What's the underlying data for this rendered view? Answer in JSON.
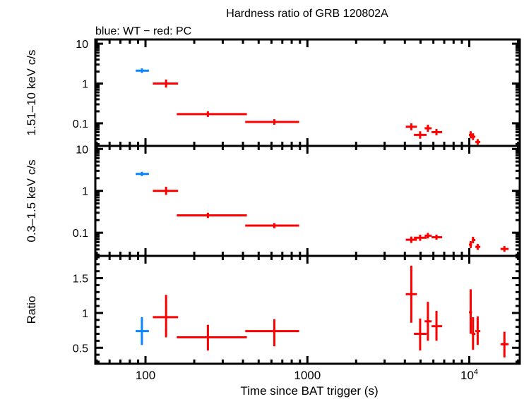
{
  "chart_data": {
    "type": "scatter",
    "title": "Hardness ratio of GRB 120802A",
    "subtitle": "blue: WT − red: PC",
    "xlabel": "Time since BAT trigger (s)",
    "xscale": "log",
    "xlim": [
      49,
      20500
    ],
    "x_ticks": [
      {
        "v": 100,
        "label": "100"
      },
      {
        "v": 1000,
        "label": "1000"
      },
      {
        "v": 10000,
        "label": "10",
        "sup": "4"
      }
    ],
    "colors": {
      "WT": "#0a84ff",
      "PC": "#ff0000",
      "axes": "#000000"
    },
    "panels": [
      {
        "ylabel": "1.51–10 keV c/s",
        "yscale": "log",
        "ylim": [
          0.027,
          12.8
        ],
        "y_ticks": [
          {
            "v": 10,
            "label": "10"
          },
          {
            "v": 1,
            "label": "1"
          },
          {
            "v": 0.1,
            "label": "0.1"
          }
        ],
        "points": [
          {
            "mode": "WT",
            "x": 95,
            "xlo": 87,
            "xhi": 105,
            "y": 2.1,
            "ylo": 1.85,
            "yhi": 2.4
          },
          {
            "mode": "PC",
            "x": 134,
            "xlo": 111,
            "xhi": 159,
            "y": 1.0,
            "ylo": 0.79,
            "yhi": 1.26
          },
          {
            "mode": "PC",
            "x": 243,
            "xlo": 156,
            "xhi": 423,
            "y": 0.17,
            "ylo": 0.145,
            "yhi": 0.2
          },
          {
            "mode": "PC",
            "x": 625,
            "xlo": 413,
            "xhi": 889,
            "y": 0.108,
            "ylo": 0.092,
            "yhi": 0.127
          },
          {
            "mode": "PC",
            "x": 4385,
            "xlo": 4050,
            "xhi": 4750,
            "y": 0.082,
            "ylo": 0.067,
            "yhi": 0.1
          },
          {
            "mode": "PC",
            "x": 4970,
            "xlo": 4550,
            "xhi": 5450,
            "y": 0.051,
            "ylo": 0.041,
            "yhi": 0.063
          },
          {
            "mode": "PC",
            "x": 5550,
            "xlo": 5300,
            "xhi": 5850,
            "y": 0.075,
            "ylo": 0.061,
            "yhi": 0.092
          },
          {
            "mode": "PC",
            "x": 6270,
            "xlo": 5850,
            "xhi": 6800,
            "y": 0.06,
            "ylo": 0.05,
            "yhi": 0.072
          },
          {
            "mode": "PC",
            "x": 10200,
            "xlo": 9950,
            "xhi": 10400,
            "y": 0.051,
            "ylo": 0.042,
            "yhi": 0.063
          },
          {
            "mode": "PC",
            "x": 10540,
            "xlo": 10350,
            "xhi": 10900,
            "y": 0.046,
            "ylo": 0.038,
            "yhi": 0.056
          },
          {
            "mode": "PC",
            "x": 11270,
            "xlo": 10900,
            "xhi": 11700,
            "y": 0.034,
            "ylo": 0.029,
            "yhi": 0.04
          }
        ]
      },
      {
        "ylabel": "0.3–1.5 keV c/s",
        "yscale": "log",
        "ylim": [
          0.028,
          11.8
        ],
        "y_ticks": [
          {
            "v": 10,
            "label": "10"
          },
          {
            "v": 1,
            "label": "1"
          },
          {
            "v": 0.1,
            "label": "0.1"
          }
        ],
        "points": [
          {
            "mode": "WT",
            "x": 95,
            "xlo": 87,
            "xhi": 105,
            "y": 2.53,
            "ylo": 2.25,
            "yhi": 2.85
          },
          {
            "mode": "PC",
            "x": 134,
            "xlo": 111,
            "xhi": 159,
            "y": 1.0,
            "ylo": 0.8,
            "yhi": 1.25
          },
          {
            "mode": "PC",
            "x": 243,
            "xlo": 156,
            "xhi": 423,
            "y": 0.26,
            "ylo": 0.225,
            "yhi": 0.3
          },
          {
            "mode": "PC",
            "x": 625,
            "xlo": 413,
            "xhi": 889,
            "y": 0.148,
            "ylo": 0.128,
            "yhi": 0.17
          },
          {
            "mode": "PC",
            "x": 4385,
            "xlo": 4050,
            "xhi": 4750,
            "y": 0.068,
            "ylo": 0.057,
            "yhi": 0.081
          },
          {
            "mode": "PC",
            "x": 4970,
            "xlo": 4550,
            "xhi": 5450,
            "y": 0.076,
            "ylo": 0.064,
            "yhi": 0.09
          },
          {
            "mode": "PC",
            "x": 5550,
            "xlo": 5300,
            "xhi": 5850,
            "y": 0.085,
            "ylo": 0.073,
            "yhi": 0.099
          },
          {
            "mode": "PC",
            "x": 6270,
            "xlo": 5850,
            "xhi": 6800,
            "y": 0.078,
            "ylo": 0.068,
            "yhi": 0.09
          },
          {
            "mode": "PC",
            "x": 10200,
            "xlo": 9950,
            "xhi": 10400,
            "y": 0.052,
            "ylo": 0.043,
            "yhi": 0.063
          },
          {
            "mode": "PC",
            "x": 10540,
            "xlo": 10350,
            "xhi": 10900,
            "y": 0.067,
            "ylo": 0.056,
            "yhi": 0.08
          },
          {
            "mode": "PC",
            "x": 11270,
            "xlo": 10900,
            "xhi": 11700,
            "y": 0.046,
            "ylo": 0.039,
            "yhi": 0.054
          },
          {
            "mode": "PC",
            "x": 16480,
            "xlo": 15600,
            "xhi": 17500,
            "y": 0.041,
            "ylo": 0.035,
            "yhi": 0.048
          }
        ]
      },
      {
        "ylabel": "Ratio",
        "yscale": "linear",
        "ylim": [
          0.27,
          1.82
        ],
        "y_ticks": [
          {
            "v": 1.5,
            "label": "1.5"
          },
          {
            "v": 1,
            "label": "1"
          },
          {
            "v": 0.5,
            "label": "0.5"
          }
        ],
        "y_minor_step": 0.1,
        "points": [
          {
            "mode": "WT",
            "x": 95,
            "xlo": 87,
            "xhi": 105,
            "y": 0.74,
            "ylo": 0.54,
            "yhi": 0.94
          },
          {
            "mode": "PC",
            "x": 134,
            "xlo": 111,
            "xhi": 159,
            "y": 0.94,
            "ylo": 0.65,
            "yhi": 1.26
          },
          {
            "mode": "PC",
            "x": 243,
            "xlo": 156,
            "xhi": 423,
            "y": 0.65,
            "ylo": 0.46,
            "yhi": 0.83
          },
          {
            "mode": "PC",
            "x": 625,
            "xlo": 413,
            "xhi": 889,
            "y": 0.74,
            "ylo": 0.52,
            "yhi": 0.91
          },
          {
            "mode": "PC",
            "x": 4385,
            "xlo": 4050,
            "xhi": 4750,
            "y": 1.27,
            "ylo": 0.86,
            "yhi": 1.68
          },
          {
            "mode": "PC",
            "x": 4970,
            "xlo": 4550,
            "xhi": 5450,
            "y": 0.7,
            "ylo": 0.46,
            "yhi": 0.92
          },
          {
            "mode": "PC",
            "x": 5550,
            "xlo": 5300,
            "xhi": 5850,
            "y": 0.88,
            "ylo": 0.6,
            "yhi": 1.16
          },
          {
            "mode": "PC",
            "x": 6270,
            "xlo": 5850,
            "xhi": 6800,
            "y": 0.81,
            "ylo": 0.6,
            "yhi": 1.03
          },
          {
            "mode": "PC",
            "x": 10200,
            "xlo": 9950,
            "xhi": 10400,
            "y": 1.01,
            "ylo": 0.7,
            "yhi": 1.34
          },
          {
            "mode": "PC",
            "x": 10540,
            "xlo": 10350,
            "xhi": 10900,
            "y": 0.7,
            "ylo": 0.47,
            "yhi": 0.94
          },
          {
            "mode": "PC",
            "x": 11270,
            "xlo": 10900,
            "xhi": 11700,
            "y": 0.74,
            "ylo": 0.54,
            "yhi": 0.95
          },
          {
            "mode": "PC",
            "x": 16480,
            "xlo": 15600,
            "xhi": 17500,
            "y": 0.55,
            "ylo": 0.36,
            "yhi": 0.73
          }
        ]
      }
    ]
  }
}
